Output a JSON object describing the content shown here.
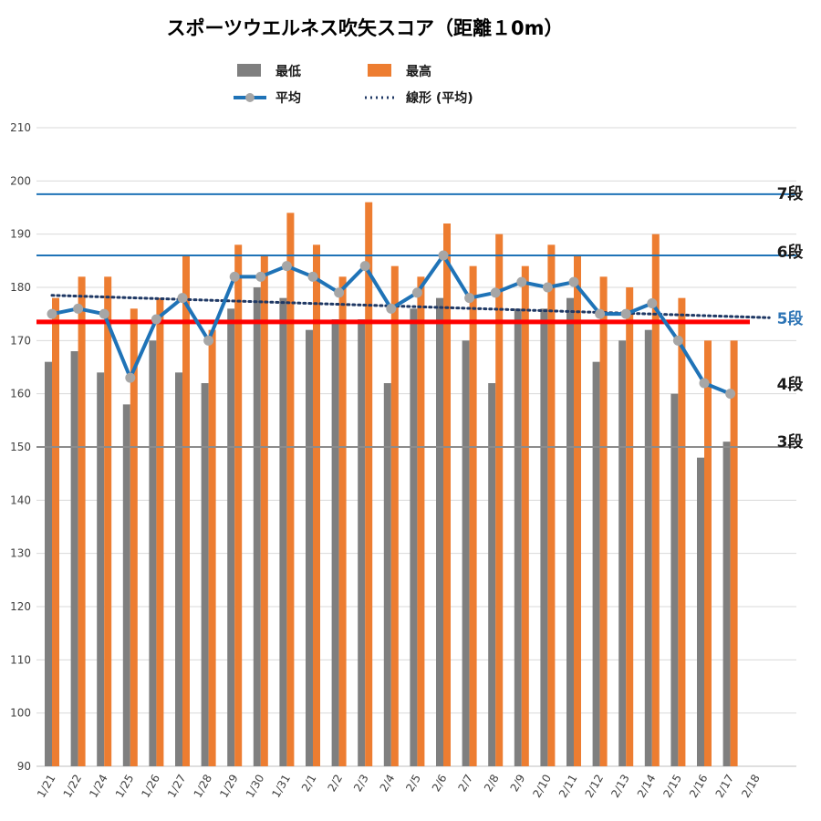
{
  "chart_data": {
    "type": "bar",
    "title": "スポーツウエルネス吹矢スコア（距離１0m）",
    "ylim": [
      90,
      210
    ],
    "yticks": [
      90,
      100,
      110,
      120,
      130,
      140,
      150,
      160,
      170,
      180,
      190,
      200,
      210
    ],
    "grid": true,
    "legend_position": "top",
    "categories": [
      "1/21",
      "1/22",
      "1/24",
      "1/25",
      "1/26",
      "1/27",
      "1/28",
      "1/29",
      "1/30",
      "1/31",
      "2/1",
      "2/2",
      "2/3",
      "2/4",
      "2/5",
      "2/6",
      "2/7",
      "2/8",
      "2/9",
      "2/10",
      "2/11",
      "2/12",
      "2/13",
      "2/14",
      "2/15",
      "2/16",
      "2/17",
      "2/18"
    ],
    "series": [
      {
        "name": "最低",
        "kind": "bar",
        "color": "#7f7f7f",
        "values": [
          166,
          168,
          164,
          158,
          170,
          164,
          162,
          176,
          180,
          178,
          172,
          174,
          174,
          162,
          176,
          178,
          170,
          162,
          176,
          176,
          178,
          166,
          170,
          172,
          160,
          148,
          151,
          null
        ]
      },
      {
        "name": "最高",
        "kind": "bar",
        "color": "#ed7d31",
        "values": [
          178,
          182,
          182,
          176,
          178,
          186,
          172,
          188,
          186,
          194,
          188,
          182,
          196,
          184,
          182,
          192,
          184,
          190,
          184,
          188,
          186,
          182,
          180,
          190,
          178,
          170,
          170,
          null
        ]
      },
      {
        "name": "平均",
        "kind": "line",
        "color": "#1f73b7",
        "marker_color": "#a6a6a6",
        "values": [
          175,
          176,
          175,
          163,
          174,
          178,
          170,
          182,
          182,
          184,
          182,
          179,
          184,
          176,
          179,
          186,
          178,
          179,
          181,
          180,
          181,
          175,
          175,
          177,
          170,
          162,
          160,
          null
        ]
      },
      {
        "name": "線形 (平均)",
        "kind": "trendline",
        "color": "#1f3864",
        "values": [
          178.5,
          null,
          null,
          null,
          null,
          null,
          null,
          null,
          null,
          null,
          null,
          null,
          null,
          null,
          null,
          null,
          null,
          null,
          null,
          null,
          null,
          null,
          null,
          null,
          null,
          null,
          null,
          174.3
        ]
      }
    ],
    "reference_lines": [
      {
        "label": "7段",
        "value": 197.5,
        "color": "#1f73b7",
        "label_color": "#1a1a1a"
      },
      {
        "label": "6段",
        "value": 186,
        "color": "#1f73b7",
        "label_color": "#1a1a1a"
      },
      {
        "label": "5段",
        "value": 173.5,
        "color": "#ff0000",
        "label_color": "#2e75b6"
      },
      {
        "label": "4段",
        "value": null,
        "color": null,
        "label_color": "#1a1a1a"
      },
      {
        "label": "3段",
        "value": 150,
        "color": "#8c8c8c",
        "label_color": "#1a1a1a"
      }
    ]
  }
}
